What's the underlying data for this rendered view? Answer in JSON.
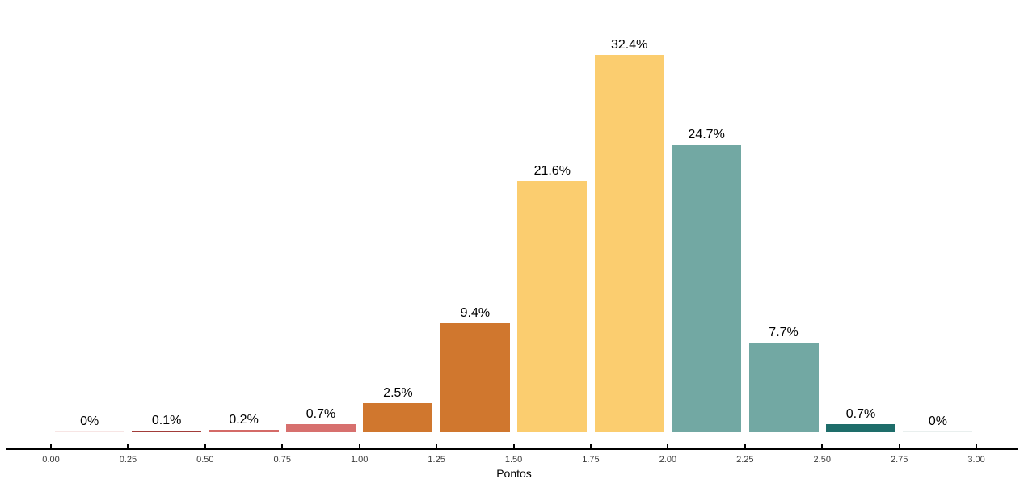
{
  "chart_data": {
    "type": "bar",
    "title": "",
    "xlabel": "Pontos",
    "ylabel": "",
    "x_bin_centers": [
      0.125,
      0.375,
      0.625,
      0.875,
      1.125,
      1.375,
      1.625,
      1.875,
      2.125,
      2.375,
      2.625,
      2.875
    ],
    "values": [
      0,
      0.1,
      0.2,
      0.7,
      2.5,
      9.4,
      21.6,
      32.4,
      24.7,
      7.7,
      0.7,
      0
    ],
    "value_labels": [
      "0%",
      "0.1%",
      "0.2%",
      "0.7%",
      "2.5%",
      "9.4%",
      "21.6%",
      "32.4%",
      "24.7%",
      "7.7%",
      "0.7%",
      "0%"
    ],
    "bar_colors": [
      "#f7e5e4",
      "#a23c39",
      "#d46a67",
      "#d7706e",
      "#d0772e",
      "#d0772e",
      "#fbcd6f",
      "#fbcd6f",
      "#72a8a3",
      "#72a8a3",
      "#1e6d6a",
      "#e9efee"
    ],
    "x_tick_values": [
      0.0,
      0.25,
      0.5,
      0.75,
      1.0,
      1.25,
      1.5,
      1.75,
      2.0,
      2.25,
      2.5,
      2.75,
      3.0
    ],
    "x_tick_labels": [
      "0.00",
      "0.25",
      "0.50",
      "0.75",
      "1.00",
      "1.25",
      "1.50",
      "1.75",
      "2.00",
      "2.25",
      "2.50",
      "2.75",
      "3.00"
    ],
    "xlim": [
      0,
      3
    ],
    "ylim": [
      0,
      34
    ],
    "grid": "off",
    "legend": "none",
    "axis_color": "#000000",
    "tick_label_color": "#3a3a3a",
    "bar_label_color": "#000000"
  }
}
